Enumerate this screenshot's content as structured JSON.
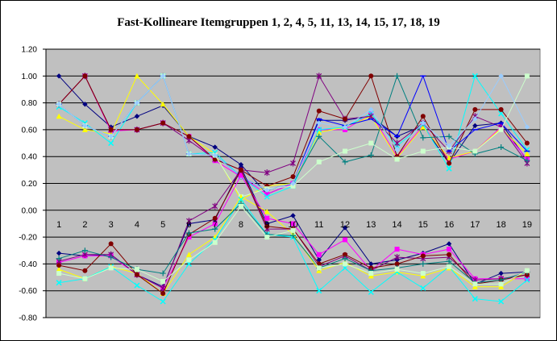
{
  "chart_data": {
    "type": "line",
    "title": "Fast-Kollineare Itemgruppen 1, 2, 4, 5, 11, 13, 14, 15, 17, 18, 19",
    "xlabel": "",
    "ylabel": "",
    "categories": [
      "1",
      "2",
      "3",
      "4",
      "5",
      "6",
      "7",
      "8",
      "9",
      "10",
      "11",
      "12",
      "13",
      "14",
      "15",
      "16",
      "17",
      "18",
      "19"
    ],
    "ylim": [
      -0.8,
      1.2
    ],
    "yticks": [
      "1.20",
      "1.00",
      "0.80",
      "0.60",
      "0.40",
      "0.20",
      "0.00",
      "-0.20",
      "-0.40",
      "-0.60",
      "-0.80"
    ],
    "grid": true,
    "legend": "none",
    "series": [
      {
        "color": "#000080",
        "marker": "diamond",
        "values": [
          1.0,
          0.79,
          0.62,
          0.7,
          0.78,
          0.55,
          0.47,
          0.34,
          0.12,
          0.2,
          0.67,
          0.67,
          0.7,
          0.55,
          0.63,
          0.35,
          0.63,
          0.65,
          0.37
        ]
      },
      {
        "color": "#ff00ff",
        "marker": "square",
        "values": [
          0.79,
          1.0,
          0.59,
          0.6,
          0.65,
          0.55,
          0.37,
          0.25,
          0.12,
          0.2,
          0.6,
          0.6,
          0.72,
          0.4,
          0.63,
          0.38,
          0.44,
          0.62,
          0.38
        ]
      },
      {
        "color": "#ffff00",
        "marker": "triangle",
        "values": [
          0.7,
          0.6,
          0.57,
          1.0,
          0.79,
          0.55,
          0.42,
          0.08,
          0.18,
          0.2,
          0.58,
          0.62,
          0.7,
          0.39,
          0.62,
          0.39,
          0.44,
          0.61,
          0.42
        ]
      },
      {
        "color": "#00ffff",
        "marker": "x",
        "values": [
          0.77,
          0.65,
          0.5,
          0.8,
          1.0,
          0.42,
          0.43,
          0.25,
          0.1,
          0.18,
          0.6,
          0.62,
          0.72,
          0.48,
          0.64,
          0.31,
          1.0,
          0.72,
          0.45
        ]
      },
      {
        "color": "#800080",
        "marker": "star",
        "values": [
          0.79,
          1.0,
          0.6,
          0.6,
          0.65,
          0.52,
          0.38,
          0.3,
          0.28,
          0.35,
          1.0,
          0.68,
          0.7,
          0.5,
          0.65,
          0.44,
          0.7,
          0.62,
          0.35
        ]
      },
      {
        "color": "#800000",
        "marker": "circle",
        "values": [
          0.79,
          1.0,
          0.6,
          0.6,
          0.65,
          0.55,
          0.38,
          0.3,
          0.18,
          0.25,
          0.74,
          0.68,
          1.0,
          0.4,
          0.7,
          0.35,
          0.75,
          0.75,
          0.5
        ]
      },
      {
        "color": "#008080",
        "marker": "plus",
        "values": [
          0.79,
          0.63,
          0.55,
          0.8,
          1.0,
          0.42,
          0.41,
          0.25,
          0.15,
          0.2,
          0.55,
          0.36,
          0.41,
          1.0,
          0.54,
          0.55,
          0.42,
          0.47,
          0.37
        ]
      },
      {
        "color": "#0000ff",
        "marker": "dash",
        "values": [
          0.79,
          0.63,
          0.55,
          0.8,
          1.0,
          0.42,
          0.41,
          0.25,
          0.15,
          0.2,
          0.68,
          0.63,
          0.68,
          0.55,
          1.0,
          0.44,
          0.6,
          0.65,
          0.44
        ]
      },
      {
        "color": "#ccffcc",
        "marker": "square",
        "values": [
          0.79,
          0.63,
          0.55,
          0.8,
          1.0,
          0.42,
          0.41,
          0.1,
          0.16,
          0.18,
          0.36,
          0.44,
          0.5,
          0.38,
          0.44,
          0.47,
          0.44,
          0.6,
          1.0
        ]
      },
      {
        "color": "#99ccff",
        "marker": "diamond",
        "values": [
          0.79,
          0.63,
          0.55,
          0.8,
          1.0,
          0.42,
          0.41,
          0.25,
          0.15,
          0.2,
          0.65,
          0.62,
          0.75,
          0.45,
          0.65,
          0.48,
          0.68,
          1.0,
          0.62
        ]
      },
      {
        "color": "#000080",
        "marker": "diamond",
        "values": [
          -0.32,
          -0.34,
          -0.33,
          -0.48,
          -0.57,
          -0.1,
          -0.07,
          0.32,
          -0.1,
          -0.04,
          -0.37,
          -0.13,
          -0.4,
          -0.37,
          -0.32,
          -0.25,
          -0.55,
          -0.47,
          -0.46
        ]
      },
      {
        "color": "#ff00ff",
        "marker": "square",
        "values": [
          -0.39,
          -0.34,
          -0.34,
          -0.48,
          -0.58,
          -0.2,
          -0.1,
          0.26,
          -0.06,
          -0.1,
          -0.33,
          -0.22,
          -0.45,
          -0.29,
          -0.33,
          -0.29,
          -0.51,
          -0.51,
          -0.51
        ]
      },
      {
        "color": "#ffff00",
        "marker": "triangle",
        "values": [
          -0.44,
          -0.51,
          -0.42,
          -0.47,
          -0.62,
          -0.33,
          -0.2,
          0.1,
          -0.01,
          -0.18,
          -0.45,
          -0.39,
          -0.49,
          -0.46,
          -0.49,
          -0.43,
          -0.57,
          -0.57,
          -0.45
        ]
      },
      {
        "color": "#00ffff",
        "marker": "x",
        "values": [
          -0.54,
          -0.51,
          -0.42,
          -0.56,
          -0.68,
          -0.4,
          -0.22,
          0.08,
          -0.18,
          -0.2,
          -0.6,
          -0.43,
          -0.61,
          -0.46,
          -0.58,
          -0.42,
          -0.66,
          -0.68,
          -0.52
        ]
      },
      {
        "color": "#800080",
        "marker": "star",
        "values": [
          -0.38,
          -0.33,
          -0.33,
          -0.48,
          -0.58,
          -0.08,
          0.03,
          0.3,
          -0.14,
          -0.14,
          -0.42,
          -0.34,
          -0.45,
          -0.35,
          -0.36,
          -0.35,
          -0.52,
          -0.51,
          -0.48
        ]
      },
      {
        "color": "#800000",
        "marker": "circle",
        "values": [
          -0.41,
          -0.45,
          -0.25,
          -0.48,
          -0.62,
          -0.18,
          -0.06,
          0.3,
          -0.12,
          -0.14,
          -0.4,
          -0.33,
          -0.43,
          -0.4,
          -0.34,
          -0.33,
          -0.55,
          -0.52,
          -0.48
        ]
      },
      {
        "color": "#008080",
        "marker": "plus",
        "values": [
          -0.36,
          -0.3,
          -0.35,
          -0.44,
          -0.47,
          -0.17,
          -0.14,
          0.05,
          -0.18,
          -0.19,
          -0.43,
          -0.36,
          -0.45,
          -0.43,
          -0.4,
          -0.38,
          -0.54,
          -0.52,
          -0.46
        ]
      },
      {
        "color": "#ccffcc",
        "marker": "square",
        "values": [
          -0.47,
          -0.51,
          -0.43,
          -0.44,
          -0.53,
          -0.37,
          -0.24,
          0.03,
          -0.2,
          -0.15,
          -0.43,
          -0.4,
          -0.47,
          -0.44,
          -0.47,
          -0.42,
          -0.55,
          -0.55,
          -0.45
        ]
      }
    ]
  }
}
